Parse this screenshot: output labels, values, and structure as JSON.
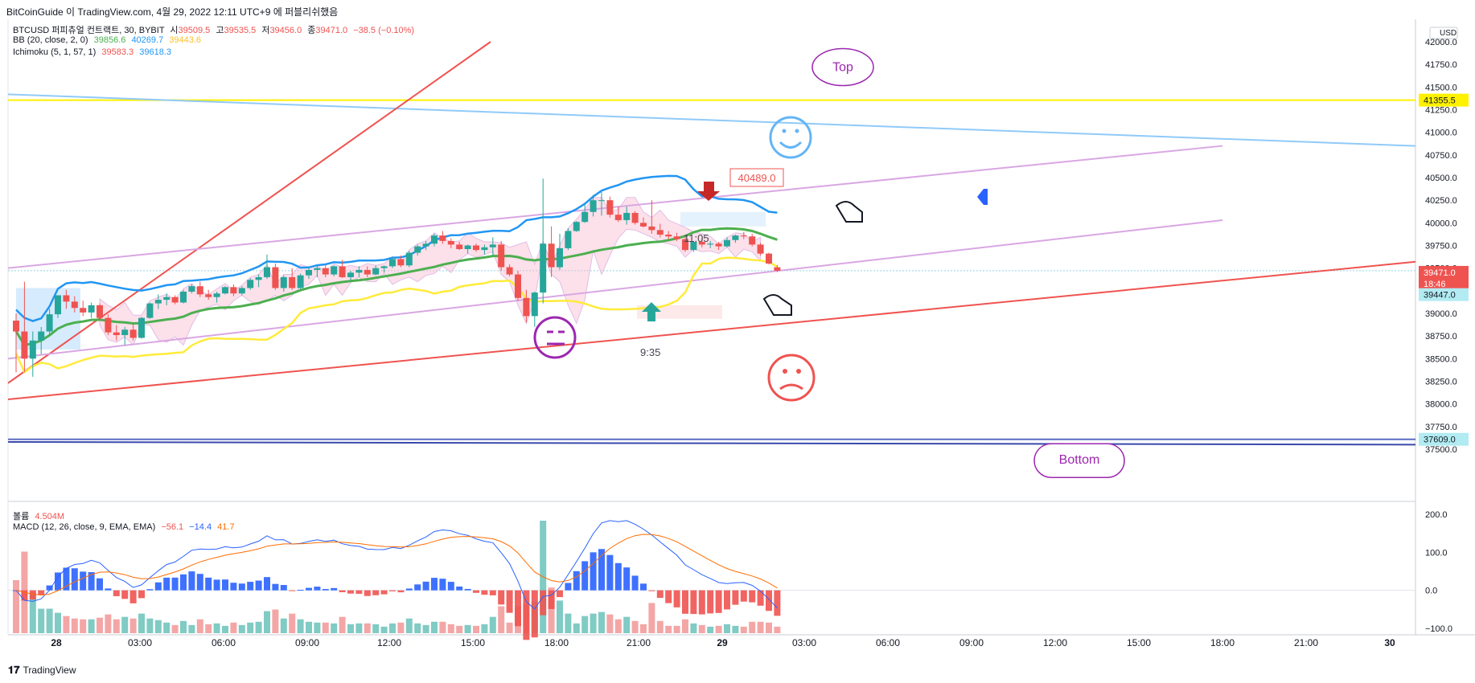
{
  "header": {
    "title": "BitCoinGuide 이 TradingView.com, 4월 29, 2022 12:11 UTC+9 에 퍼블리쉬했음"
  },
  "legend": {
    "symbol": "BTCUSD 퍼피츄얼 컨트랙트, 30, BYBIT",
    "o_label": "시",
    "o": "39509.5",
    "h_label": "고",
    "h": "39535.5",
    "l_label": "저",
    "l": "39456.0",
    "c_label": "종",
    "c": "39471.0",
    "change": "−38.5 (−0.10%)",
    "bb_label": "BB (20, close, 2, 0)",
    "bb_mid": "39856.6",
    "bb_up": "40269.7",
    "bb_low": "39443.6",
    "ichi_label": "Ichimoku (5, 1, 57, 1)",
    "ichi_a": "39583.3",
    "ichi_b": "39618.3",
    "vol_label": "볼륨",
    "vol": "4.504M",
    "macd_label": "MACD (12, 26, close, 9, EMA, EMA)",
    "macd_hist": "−56.1",
    "macd_line": "−14.4",
    "macd_signal": "41.7"
  },
  "axis": {
    "currency": "USD",
    "price_ticks": [
      "42000.0",
      "41750.0",
      "41500.0",
      "41250.0",
      "41000.0",
      "40750.0",
      "40500.0",
      "40250.0",
      "40000.0",
      "39750.0",
      "39500.0",
      "39250.0",
      "39000.0",
      "38750.0",
      "38500.0",
      "38250.0",
      "38000.0",
      "37750.0",
      "37500.0"
    ],
    "macd_ticks": [
      "200.0",
      "100.0",
      "0.0",
      "−100.0"
    ],
    "time_ticks": [
      "28",
      "03:00",
      "06:00",
      "09:00",
      "12:00",
      "15:00",
      "18:00",
      "21:00",
      "29",
      "03:00",
      "06:00",
      "09:00",
      "12:00",
      "15:00",
      "18:00",
      "21:00",
      "30"
    ]
  },
  "badges": {
    "top_line": "41355.5",
    "current_price": "39471.0",
    "countdown": "18:46",
    "bb_low_badge": "39447.0",
    "bottom_line": "37609.0"
  },
  "annotations": {
    "top": "Top",
    "bottom": "Bottom",
    "high_label": "40489.0",
    "time1": "11:05",
    "time2": "9:35"
  },
  "footer": {
    "brand": "TradingView"
  },
  "colors": {
    "up": "#26a69a",
    "down": "#ef5350",
    "bb_mid": "#4caf50",
    "bb_up": "#2196f3",
    "bb_low": "#ffeb3b",
    "channel": "#ce93d8",
    "purple": "#9c27b0",
    "blue_line": "#90caf9",
    "red_line": "#ef5350",
    "hl_yellow": "#fff100",
    "macd": "#2962ff",
    "signal": "#ff6d00"
  },
  "chart_data": {
    "type": "candlestick",
    "interval": "30m",
    "y_range": [
      37500,
      42000
    ],
    "candles": [
      [
        38920,
        39000,
        38350,
        38800
      ],
      [
        38800,
        39350,
        38350,
        38500
      ],
      [
        38500,
        38800,
        38300,
        38700
      ],
      [
        38700,
        38850,
        38550,
        38800
      ],
      [
        38800,
        39050,
        38750,
        38990
      ],
      [
        38990,
        39200,
        38950,
        39200
      ],
      [
        39200,
        39260,
        39050,
        39130
      ],
      [
        39130,
        39190,
        39010,
        39060
      ],
      [
        39060,
        39140,
        38970,
        39010
      ],
      [
        39010,
        39120,
        38950,
        39090
      ],
      [
        39090,
        39110,
        38920,
        38950
      ],
      [
        38950,
        38990,
        38760,
        38790
      ],
      [
        38790,
        38870,
        38700,
        38760
      ],
      [
        38760,
        38850,
        38650,
        38820
      ],
      [
        38820,
        38880,
        38700,
        38730
      ],
      [
        38730,
        38960,
        38720,
        38950
      ],
      [
        38950,
        39120,
        38940,
        39110
      ],
      [
        39110,
        39210,
        39050,
        39150
      ],
      [
        39150,
        39220,
        39090,
        39180
      ],
      [
        39180,
        39200,
        39100,
        39120
      ],
      [
        39120,
        39260,
        39110,
        39240
      ],
      [
        39240,
        39320,
        39220,
        39300
      ],
      [
        39300,
        39350,
        39180,
        39210
      ],
      [
        39210,
        39260,
        39150,
        39180
      ],
      [
        39180,
        39240,
        39120,
        39220
      ],
      [
        39220,
        39300,
        39210,
        39290
      ],
      [
        39290,
        39320,
        39190,
        39220
      ],
      [
        39220,
        39300,
        39200,
        39280
      ],
      [
        39280,
        39390,
        39260,
        39370
      ],
      [
        39370,
        39430,
        39290,
        39400
      ],
      [
        39400,
        39650,
        39380,
        39510
      ],
      [
        39510,
        39550,
        39260,
        39280
      ],
      [
        39280,
        39420,
        39240,
        39400
      ],
      [
        39400,
        39500,
        39260,
        39280
      ],
      [
        39280,
        39440,
        39270,
        39420
      ],
      [
        39420,
        39520,
        39380,
        39480
      ],
      [
        39480,
        39530,
        39400,
        39500
      ],
      [
        39500,
        39530,
        39400,
        39430
      ],
      [
        39430,
        39530,
        39410,
        39520
      ],
      [
        39520,
        39590,
        39390,
        39400
      ],
      [
        39400,
        39470,
        39360,
        39450
      ],
      [
        39450,
        39520,
        39400,
        39480
      ],
      [
        39480,
        39520,
        39400,
        39430
      ],
      [
        39430,
        39530,
        39420,
        39500
      ],
      [
        39500,
        39530,
        39450,
        39520
      ],
      [
        39520,
        39620,
        39500,
        39600
      ],
      [
        39600,
        39640,
        39510,
        39530
      ],
      [
        39530,
        39690,
        39510,
        39670
      ],
      [
        39670,
        39760,
        39640,
        39740
      ],
      [
        39740,
        39800,
        39700,
        39770
      ],
      [
        39770,
        39880,
        39740,
        39860
      ],
      [
        39860,
        39910,
        39770,
        39800
      ],
      [
        39800,
        39830,
        39720,
        39760
      ],
      [
        39760,
        39790,
        39700,
        39710
      ],
      [
        39710,
        39760,
        39660,
        39750
      ],
      [
        39750,
        39770,
        39680,
        39700
      ],
      [
        39700,
        39760,
        39650,
        39730
      ],
      [
        39730,
        39840,
        39640,
        39760
      ],
      [
        39760,
        39800,
        39470,
        39510
      ],
      [
        39510,
        39540,
        39410,
        39430
      ],
      [
        39430,
        39470,
        39140,
        39170
      ],
      [
        39170,
        39260,
        38900,
        38970
      ],
      [
        38970,
        39240,
        38850,
        39230
      ],
      [
        39230,
        40489,
        39110,
        39770
      ],
      [
        39770,
        39960,
        39400,
        39510
      ],
      [
        39510,
        39880,
        39480,
        39720
      ],
      [
        39720,
        39940,
        39700,
        39910
      ],
      [
        39910,
        40020,
        39900,
        40010
      ],
      [
        40010,
        40210,
        40000,
        40120
      ],
      [
        40120,
        40310,
        40070,
        40250
      ],
      [
        40250,
        40340,
        40080,
        40250
      ],
      [
        40250,
        40290,
        40060,
        40090
      ],
      [
        40090,
        40180,
        40010,
        40030
      ],
      [
        40030,
        40180,
        39980,
        40110
      ],
      [
        40110,
        40130,
        39980,
        40000
      ],
      [
        40000,
        40060,
        39950,
        39960
      ],
      [
        39960,
        40250,
        39880,
        39920
      ],
      [
        39920,
        39990,
        39840,
        39870
      ],
      [
        39870,
        39910,
        39820,
        39850
      ],
      [
        39850,
        39890,
        39800,
        39820
      ],
      [
        39820,
        39850,
        39680,
        39700
      ],
      [
        39700,
        39800,
        39680,
        39790
      ],
      [
        39790,
        39830,
        39730,
        39760
      ],
      [
        39760,
        39800,
        39720,
        39770
      ],
      [
        39770,
        39790,
        39700,
        39740
      ],
      [
        39740,
        39840,
        39730,
        39810
      ],
      [
        39810,
        39870,
        39780,
        39860
      ],
      [
        39860,
        39900,
        39820,
        39850
      ],
      [
        39850,
        39880,
        39740,
        39760
      ],
      [
        39760,
        39780,
        39640,
        39660
      ],
      [
        39660,
        39670,
        39540,
        39550
      ],
      [
        39509.5,
        39535.5,
        39456,
        39471
      ]
    ]
  }
}
